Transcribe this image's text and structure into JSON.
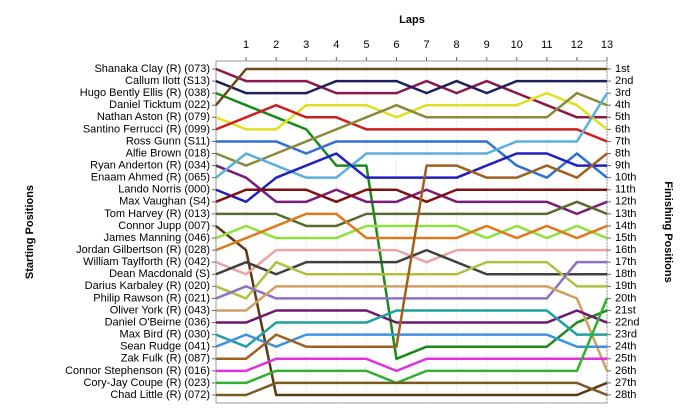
{
  "chart_data": {
    "type": "line",
    "title": "Laps",
    "y_label": "Starting Positions",
    "y2_label": "Finishing Positions",
    "x": [
      0,
      1,
      2,
      3,
      4,
      5,
      6,
      7,
      8,
      9,
      10,
      11,
      12,
      13
    ],
    "xlim": [
      0,
      13
    ],
    "xticks": [
      1,
      2,
      3,
      4,
      5,
      6,
      7,
      8,
      9,
      10,
      11,
      12,
      13
    ],
    "ylim": [
      1,
      28
    ],
    "reversed": true,
    "grid": true,
    "yticks": [
      {
        "value": 1,
        "label": "1st"
      },
      {
        "value": 2,
        "label": "2nd"
      },
      {
        "value": 3,
        "label": "3rd"
      },
      {
        "value": 4,
        "label": "4th"
      },
      {
        "value": 5,
        "label": "5th"
      },
      {
        "value": 6,
        "label": "6th"
      },
      {
        "value": 7,
        "label": "7th"
      },
      {
        "value": 8,
        "label": "8th"
      },
      {
        "value": 9,
        "label": "9th"
      },
      {
        "value": 10,
        "label": "10th"
      },
      {
        "value": 11,
        "label": "11th"
      },
      {
        "value": 12,
        "label": "12th"
      },
      {
        "value": 13,
        "label": "13th"
      },
      {
        "value": 14,
        "label": "14th"
      },
      {
        "value": 15,
        "label": "15th"
      },
      {
        "value": 16,
        "label": "16th"
      },
      {
        "value": 17,
        "label": "17th"
      },
      {
        "value": 18,
        "label": "18th"
      },
      {
        "value": 19,
        "label": "19th"
      },
      {
        "value": 20,
        "label": "20th"
      },
      {
        "value": 21,
        "label": "21st"
      },
      {
        "value": 22,
        "label": "22nd"
      },
      {
        "value": 23,
        "label": "23rd"
      },
      {
        "value": 24,
        "label": "24th"
      },
      {
        "value": 25,
        "label": "25th"
      },
      {
        "value": 26,
        "label": "26th"
      },
      {
        "value": 27,
        "label": "27th"
      },
      {
        "value": 28,
        "label": "28th"
      }
    ],
    "series": [
      {
        "name": "Shanaka Clay (R) (073)",
        "color": "#8b1a4a",
        "values": [
          1,
          2,
          2,
          2,
          3,
          3,
          3,
          2,
          3,
          2,
          3,
          4,
          5,
          5
        ]
      },
      {
        "name": "Callum Ilott (S13)",
        "color": "#1f1f5f",
        "values": [
          2,
          3,
          3,
          3,
          2,
          2,
          2,
          3,
          2,
          3,
          2,
          2,
          2,
          2
        ]
      },
      {
        "name": "Hugo Bently Ellis (R) (038)",
        "color": "#1a8a1a",
        "values": [
          3,
          4,
          5,
          6,
          9,
          9,
          25,
          24,
          24,
          24,
          24,
          24,
          22,
          21
        ]
      },
      {
        "name": "Daniel Ticktum (022)",
        "color": "#6b4a1a",
        "values": [
          4,
          1,
          1,
          1,
          1,
          1,
          1,
          1,
          1,
          1,
          1,
          1,
          1,
          1
        ]
      },
      {
        "name": "Nathan Aston (R) (079)",
        "color": "#e0e020",
        "values": [
          5,
          6,
          6,
          4,
          4,
          4,
          5,
          4,
          4,
          4,
          4,
          3,
          4,
          6
        ]
      },
      {
        "name": "Santino Ferrucci (R) (099)",
        "color": "#cc2020",
        "values": [
          6,
          5,
          4,
          5,
          5,
          6,
          6,
          6,
          6,
          6,
          6,
          6,
          6,
          7
        ]
      },
      {
        "name": "Ross Gunn (S11)",
        "color": "#3070d0",
        "values": [
          7,
          7,
          7,
          8,
          7,
          7,
          7,
          7,
          7,
          7,
          9,
          10,
          8,
          10
        ]
      },
      {
        "name": "Alfie Brown (018)",
        "color": "#8a8a3a",
        "values": [
          8,
          9,
          8,
          7,
          6,
          5,
          4,
          5,
          5,
          5,
          5,
          5,
          3,
          4
        ]
      },
      {
        "name": "Ryan Anderton (R) (034)",
        "color": "#7a1a7a",
        "values": [
          9,
          10,
          12,
          12,
          11,
          12,
          12,
          11,
          12,
          12,
          12,
          12,
          13,
          12
        ]
      },
      {
        "name": "Enaam Ahmed (R) (065)",
        "color": "#5ab0d8",
        "values": [
          10,
          8,
          9,
          10,
          10,
          8,
          8,
          8,
          8,
          8,
          7,
          7,
          7,
          3
        ]
      },
      {
        "name": "Lando Norris (000)",
        "color": "#2020c0",
        "values": [
          11,
          12,
          10,
          9,
          8,
          10,
          10,
          10,
          10,
          9,
          8,
          8,
          9,
          9
        ]
      },
      {
        "name": "Max Vaughan (S4)",
        "color": "#801010",
        "values": [
          12,
          11,
          11,
          11,
          12,
          11,
          11,
          12,
          11,
          11,
          11,
          11,
          11,
          11
        ]
      },
      {
        "name": "Tom Harvey (R) (013)",
        "color": "#556b2f",
        "values": [
          13,
          13,
          13,
          14,
          14,
          13,
          13,
          13,
          13,
          13,
          13,
          13,
          12,
          13
        ]
      },
      {
        "name": "Connor Jupp (007)",
        "color": "#5a3a10",
        "values": [
          14,
          16,
          28,
          28,
          28,
          28,
          28,
          28,
          28,
          28,
          28,
          28,
          28,
          27
        ]
      },
      {
        "name": "James Manning (046)",
        "color": "#90e040",
        "values": [
          15,
          14,
          15,
          15,
          15,
          14,
          14,
          14,
          14,
          15,
          14,
          15,
          14,
          15
        ]
      },
      {
        "name": "Jordan Gilbertson (R) (028)",
        "color": "#e07820",
        "values": [
          16,
          15,
          14,
          13,
          13,
          15,
          15,
          15,
          15,
          14,
          15,
          14,
          15,
          14
        ]
      },
      {
        "name": "William Taylforth (R) (042)",
        "color": "#f0a0a0",
        "values": [
          17,
          18,
          16,
          16,
          16,
          16,
          16,
          17,
          16,
          16,
          16,
          16,
          16,
          16
        ]
      },
      {
        "name": "Dean Macdonald (S)",
        "color": "#404040",
        "values": [
          18,
          17,
          18,
          17,
          17,
          17,
          17,
          16,
          17,
          18,
          18,
          18,
          18,
          18
        ]
      },
      {
        "name": "Darius Karbaley (R) (020)",
        "color": "#b0c040",
        "values": [
          19,
          20,
          17,
          18,
          18,
          18,
          18,
          18,
          18,
          17,
          17,
          17,
          19,
          19
        ]
      },
      {
        "name": "Philip Rawson (R) (021)",
        "color": "#9070c0",
        "values": [
          20,
          19,
          20,
          20,
          20,
          20,
          20,
          20,
          20,
          20,
          20,
          20,
          17,
          17
        ]
      },
      {
        "name": "Oliver York (R) (043)",
        "color": "#d0a060",
        "values": [
          21,
          21,
          19,
          19,
          19,
          19,
          19,
          19,
          19,
          19,
          19,
          19,
          20,
          26
        ]
      },
      {
        "name": "Daniel O'Beirne (036)",
        "color": "#701870",
        "values": [
          22,
          22,
          21,
          21,
          21,
          21,
          22,
          22,
          22,
          22,
          22,
          22,
          21,
          22
        ]
      },
      {
        "name": "Max Bird (R) (030)",
        "color": "#20a0a0",
        "values": [
          23,
          24,
          22,
          22,
          22,
          22,
          21,
          21,
          21,
          21,
          21,
          21,
          23,
          23
        ]
      },
      {
        "name": "Sean Rudge (041)",
        "color": "#4090e0",
        "values": [
          24,
          23,
          24,
          23,
          23,
          23,
          23,
          23,
          23,
          23,
          23,
          23,
          24,
          24
        ]
      },
      {
        "name": "Zak Fulk (R) (087)",
        "color": "#a06020",
        "values": [
          25,
          25,
          23,
          24,
          24,
          24,
          24,
          9,
          9,
          10,
          10,
          9,
          10,
          8
        ]
      },
      {
        "name": "Connor Stephenson (R) (016)",
        "color": "#e030e0",
        "values": [
          26,
          26,
          25,
          25,
          25,
          25,
          26,
          25,
          25,
          25,
          25,
          25,
          25,
          25
        ]
      },
      {
        "name": "Cory-Jay Coupe (R) (023)",
        "color": "#30b030",
        "values": [
          27,
          27,
          26,
          26,
          26,
          26,
          27,
          26,
          26,
          26,
          26,
          26,
          26,
          20
        ]
      },
      {
        "name": "Chad Little (R) (072)",
        "color": "#7a5a20",
        "values": [
          28,
          28,
          27,
          27,
          27,
          27,
          27,
          27,
          27,
          27,
          27,
          27,
          27,
          28
        ]
      }
    ]
  }
}
